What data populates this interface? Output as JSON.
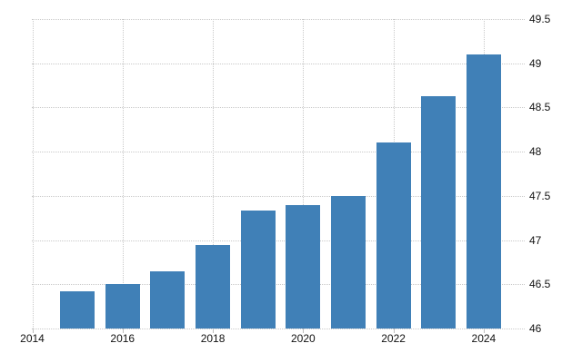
{
  "chart_data": {
    "type": "bar",
    "x": [
      2015,
      2016,
      2017,
      2018,
      2019,
      2020,
      2021,
      2022,
      2023,
      2024
    ],
    "values": [
      46.42,
      46.5,
      46.65,
      46.94,
      47.33,
      47.4,
      47.5,
      48.1,
      48.63,
      49.1
    ],
    "ylim": [
      46,
      49.5
    ],
    "yticks": [
      46,
      46.5,
      47,
      47.5,
      48,
      48.5,
      49,
      49.5
    ],
    "ytick_labels": [
      "46",
      "46.5",
      "47",
      "47.5",
      "48",
      "48.5",
      "49",
      "49.5"
    ],
    "xticks": [
      2014,
      2016,
      2018,
      2020,
      2022,
      2024
    ],
    "xtick_labels": [
      "2014",
      "2016",
      "2018",
      "2020",
      "2022",
      "2024"
    ],
    "grid": "dotted",
    "legend_position": "none",
    "y_axis_side": "right",
    "bar_color": "#4080b7",
    "gridline_color": "#c9c9c9",
    "tick_color": "#bdbdbd",
    "label_color": "#111111",
    "background_color": "#ffffff"
  }
}
